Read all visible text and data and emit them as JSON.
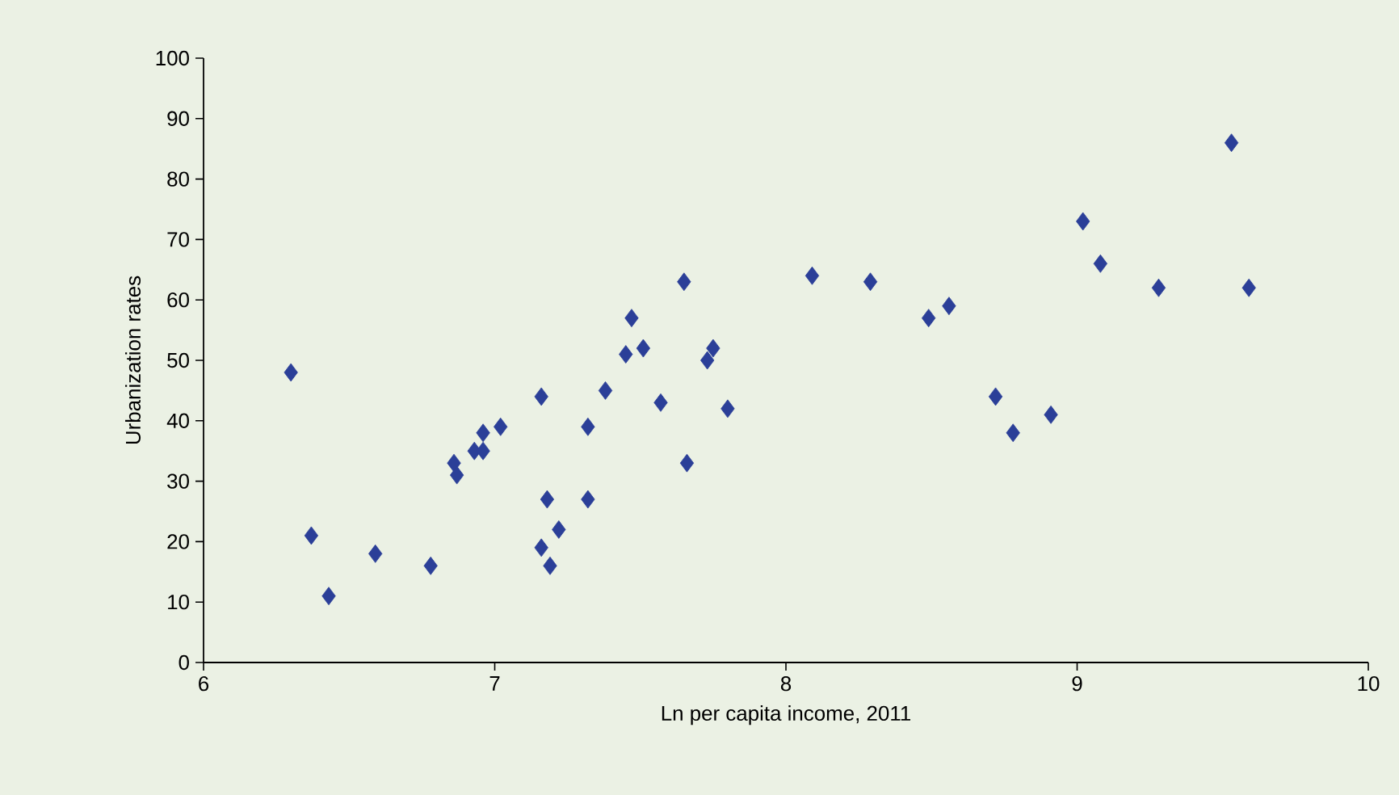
{
  "chart_data": {
    "type": "scatter",
    "xlabel": "Ln per capita income, 2011",
    "ylabel": "Urbanization rates",
    "x": [
      6.3,
      6.37,
      6.43,
      6.59,
      6.78,
      6.86,
      6.87,
      6.93,
      6.96,
      6.96,
      7.02,
      7.16,
      7.16,
      7.18,
      7.19,
      7.22,
      7.32,
      7.32,
      7.38,
      7.45,
      7.47,
      7.51,
      7.57,
      7.65,
      7.66,
      7.73,
      7.75,
      7.8,
      8.09,
      8.29,
      8.49,
      8.56,
      8.72,
      8.78,
      8.91,
      9.02,
      9.08,
      9.28,
      9.53,
      9.59
    ],
    "values": [
      48,
      21,
      11,
      18,
      16,
      33,
      31,
      35,
      35,
      38,
      39,
      44,
      19,
      27,
      16,
      22,
      39,
      27,
      45,
      51,
      57,
      52,
      43,
      63,
      33,
      50,
      52,
      42,
      64,
      63,
      57,
      59,
      44,
      38,
      41,
      73,
      66,
      62,
      86,
      62
    ],
    "color": "#2b3f98",
    "marker": "diamond",
    "xlim": [
      6,
      10
    ],
    "ylim": [
      0,
      100
    ],
    "xticks": [
      6,
      7,
      8,
      9,
      10
    ],
    "yticks": [
      0,
      10,
      20,
      30,
      40,
      50,
      60,
      70,
      80,
      90,
      100
    ]
  }
}
